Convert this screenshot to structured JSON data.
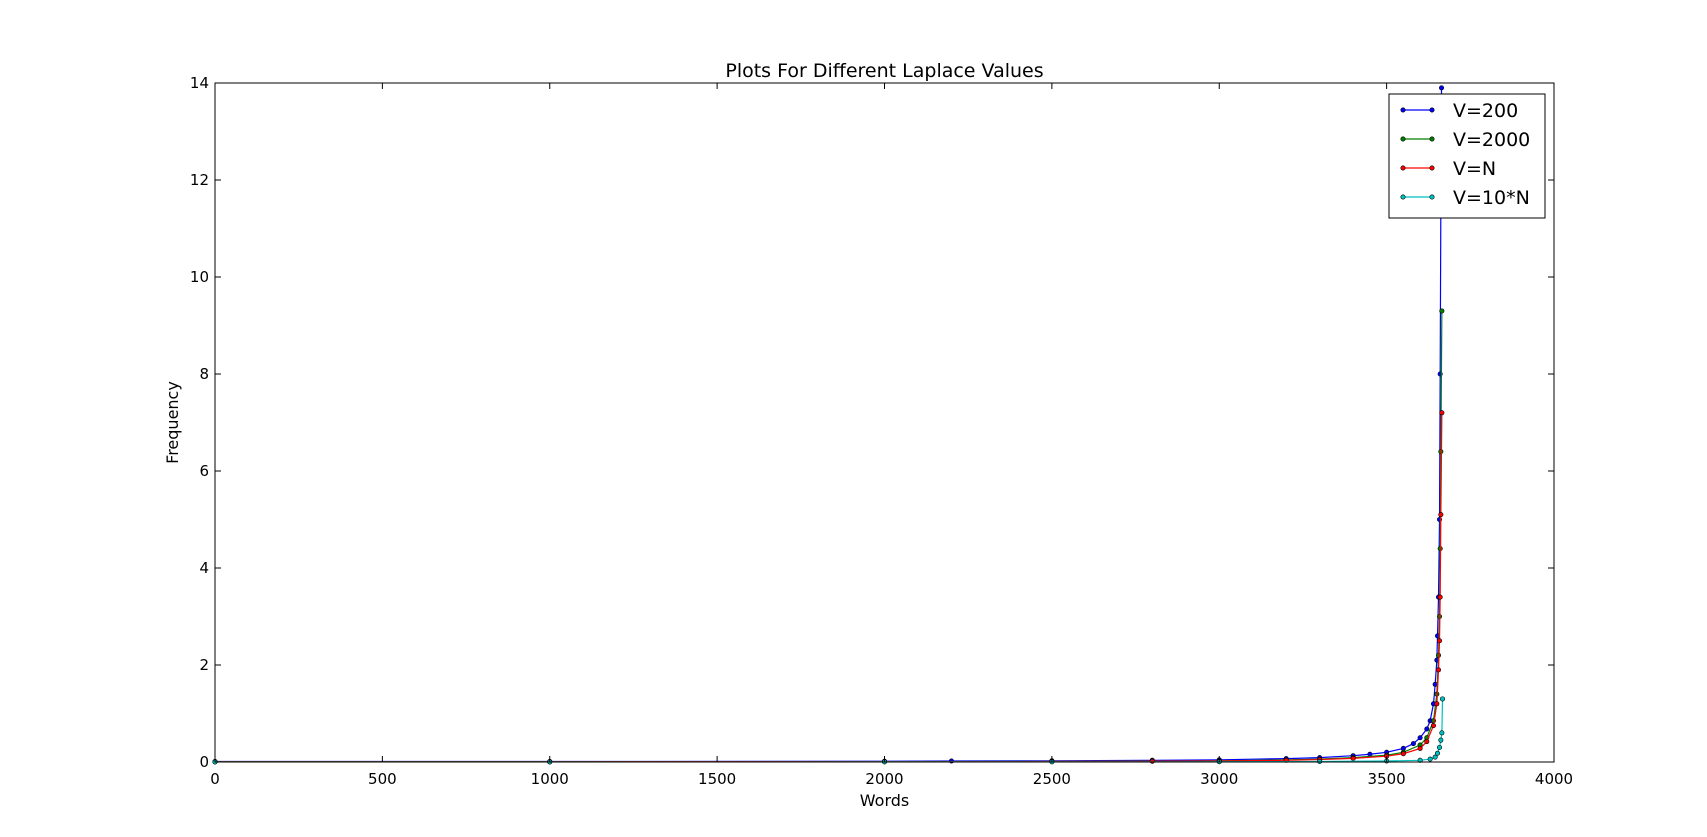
{
  "chart_data": {
    "type": "line",
    "title": "Plots For Different Laplace Values",
    "xlabel": "Words",
    "ylabel": "Frequency",
    "xlim": [
      0,
      4000
    ],
    "ylim": [
      0,
      14
    ],
    "xticks": [
      0,
      500,
      1000,
      1500,
      2000,
      2500,
      3000,
      3500,
      4000
    ],
    "yticks": [
      0,
      2,
      4,
      6,
      8,
      10,
      12,
      14
    ],
    "grid": false,
    "legend": {
      "placement": "top-right"
    },
    "series": [
      {
        "name": "V=200",
        "color": "#0000ff",
        "points": [
          [
            0,
            0.01
          ],
          [
            1000,
            0.01
          ],
          [
            2000,
            0.015
          ],
          [
            2200,
            0.02
          ],
          [
            2500,
            0.025
          ],
          [
            2800,
            0.035
          ],
          [
            3000,
            0.045
          ],
          [
            3200,
            0.07
          ],
          [
            3300,
            0.09
          ],
          [
            3400,
            0.13
          ],
          [
            3450,
            0.16
          ],
          [
            3500,
            0.2
          ],
          [
            3550,
            0.28
          ],
          [
            3580,
            0.38
          ],
          [
            3600,
            0.5
          ],
          [
            3620,
            0.68
          ],
          [
            3630,
            0.85
          ],
          [
            3640,
            1.2
          ],
          [
            3645,
            1.6
          ],
          [
            3650,
            2.1
          ],
          [
            3652,
            2.6
          ],
          [
            3655,
            3.4
          ],
          [
            3658,
            5.0
          ],
          [
            3660,
            8.0
          ],
          [
            3662,
            11.5
          ],
          [
            3664,
            13.9
          ]
        ]
      },
      {
        "name": "V=2000",
        "color": "#008000",
        "points": [
          [
            0,
            0.005
          ],
          [
            1000,
            0.005
          ],
          [
            2000,
            0.008
          ],
          [
            2500,
            0.012
          ],
          [
            2800,
            0.018
          ],
          [
            3000,
            0.025
          ],
          [
            3200,
            0.045
          ],
          [
            3300,
            0.06
          ],
          [
            3400,
            0.09
          ],
          [
            3500,
            0.14
          ],
          [
            3550,
            0.2
          ],
          [
            3600,
            0.35
          ],
          [
            3620,
            0.5
          ],
          [
            3640,
            0.85
          ],
          [
            3650,
            1.4
          ],
          [
            3655,
            2.2
          ],
          [
            3658,
            3.0
          ],
          [
            3660,
            4.4
          ],
          [
            3662,
            6.4
          ],
          [
            3665,
            9.3
          ]
        ]
      },
      {
        "name": "V=N",
        "color": "#ff0000",
        "points": [
          [
            0,
            0.004
          ],
          [
            1000,
            0.004
          ],
          [
            2000,
            0.006
          ],
          [
            2500,
            0.01
          ],
          [
            2800,
            0.015
          ],
          [
            3000,
            0.02
          ],
          [
            3200,
            0.035
          ],
          [
            3300,
            0.05
          ],
          [
            3400,
            0.075
          ],
          [
            3500,
            0.12
          ],
          [
            3550,
            0.17
          ],
          [
            3600,
            0.28
          ],
          [
            3620,
            0.42
          ],
          [
            3640,
            0.75
          ],
          [
            3650,
            1.2
          ],
          [
            3655,
            1.9
          ],
          [
            3658,
            2.5
          ],
          [
            3660,
            3.4
          ],
          [
            3662,
            5.1
          ],
          [
            3665,
            7.2
          ]
        ]
      },
      {
        "name": "V=10*N",
        "color": "#00bfbf",
        "points": [
          [
            0,
            0.001
          ],
          [
            1000,
            0.001
          ],
          [
            2000,
            0.002
          ],
          [
            2500,
            0.003
          ],
          [
            3000,
            0.005
          ],
          [
            3300,
            0.01
          ],
          [
            3500,
            0.02
          ],
          [
            3600,
            0.035
          ],
          [
            3630,
            0.06
          ],
          [
            3645,
            0.1
          ],
          [
            3652,
            0.18
          ],
          [
            3658,
            0.3
          ],
          [
            3662,
            0.45
          ],
          [
            3665,
            0.6
          ],
          [
            3667,
            1.3
          ]
        ]
      }
    ]
  }
}
